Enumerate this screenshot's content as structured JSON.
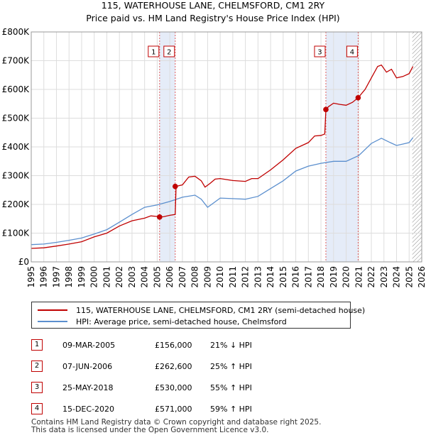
{
  "chart_data": {
    "type": "line",
    "title": "115, WATERHOUSE LANE, CHELMSFORD, CM1 2RY",
    "subtitle": "Price paid vs. HM Land Registry's House Price Index (HPI)",
    "xlabel": "",
    "ylabel": "",
    "xlim": [
      1995,
      2026
    ],
    "ylim": [
      0,
      800000
    ],
    "x_ticks": [
      "1995",
      "1996",
      "1997",
      "1998",
      "1999",
      "2000",
      "2001",
      "2002",
      "2003",
      "2004",
      "2005",
      "2006",
      "2007",
      "2008",
      "2009",
      "2010",
      "2011",
      "2012",
      "2013",
      "2014",
      "2015",
      "2016",
      "2017",
      "2018",
      "2019",
      "2020",
      "2021",
      "2022",
      "2023",
      "2024",
      "2025",
      "2026"
    ],
    "y_ticks": [
      {
        "value": 0,
        "label": "£0"
      },
      {
        "value": 100000,
        "label": "£100K"
      },
      {
        "value": 200000,
        "label": "£200K"
      },
      {
        "value": 300000,
        "label": "£300K"
      },
      {
        "value": 400000,
        "label": "£400K"
      },
      {
        "value": 500000,
        "label": "£500K"
      },
      {
        "value": 600000,
        "label": "£600K"
      },
      {
        "value": 700000,
        "label": "£700K"
      },
      {
        "value": 800000,
        "label": "£800K"
      }
    ],
    "grid": true,
    "series": [
      {
        "name": "115, WATERHOUSE LANE, CHELMSFORD, CM1 2RY (semi-detached house)",
        "color": "#c00000",
        "x": [
          1995.0,
          1996.0,
          1997.0,
          1998.0,
          1999.0,
          2000.0,
          2001.0,
          2002.0,
          2003.0,
          2004.0,
          2004.5,
          2005.0,
          2005.19,
          2005.5,
          2006.0,
          2006.43,
          2006.5,
          2007.0,
          2007.5,
          2008.0,
          2008.5,
          2008.8,
          2009.2,
          2009.6,
          2010.0,
          2011.0,
          2012.0,
          2012.5,
          2013.0,
          2014.0,
          2015.0,
          2016.0,
          2017.0,
          2017.5,
          2018.0,
          2018.3,
          2018.39,
          2018.6,
          2019.0,
          2019.5,
          2020.0,
          2020.5,
          2020.95,
          2021.5,
          2022.0,
          2022.5,
          2022.8,
          2023.2,
          2023.6,
          2024.0,
          2024.5,
          2025.0,
          2025.3
        ],
        "values": [
          47000,
          49000,
          55000,
          62000,
          70000,
          87000,
          100000,
          125000,
          143000,
          152000,
          160000,
          158000,
          156000,
          157000,
          162000,
          165000,
          262600,
          268000,
          295000,
          298000,
          282000,
          260000,
          273000,
          288000,
          290000,
          283000,
          280000,
          290000,
          290000,
          320000,
          355000,
          395000,
          415000,
          438000,
          440000,
          445000,
          530000,
          540000,
          552000,
          548000,
          545000,
          555000,
          571000,
          600000,
          640000,
          680000,
          685000,
          660000,
          670000,
          640000,
          645000,
          655000,
          680000
        ]
      },
      {
        "name": "HPI: Average price, semi-detached house, Chelmsford",
        "color": "#5b8fce",
        "x": [
          1995.0,
          1996.0,
          1997.0,
          1998.0,
          1999.0,
          2000.0,
          2001.0,
          2002.0,
          2003.0,
          2004.0,
          2005.0,
          2006.0,
          2007.0,
          2008.0,
          2008.5,
          2009.0,
          2009.5,
          2010.0,
          2011.0,
          2012.0,
          2013.0,
          2014.0,
          2015.0,
          2016.0,
          2017.0,
          2018.0,
          2019.0,
          2020.0,
          2021.0,
          2022.0,
          2022.8,
          2023.5,
          2024.0,
          2024.5,
          2025.0,
          2025.3
        ],
        "values": [
          60000,
          62000,
          68000,
          75000,
          83000,
          97000,
          112000,
          138000,
          165000,
          190000,
          198000,
          210000,
          225000,
          232000,
          218000,
          190000,
          206000,
          222000,
          220000,
          218000,
          228000,
          255000,
          282000,
          316000,
          333000,
          343000,
          350000,
          350000,
          370000,
          412000,
          430000,
          415000,
          405000,
          410000,
          415000,
          432000
        ]
      }
    ],
    "transactions": [
      {
        "label": "1",
        "x": 2005.19,
        "value": 156000
      },
      {
        "label": "2",
        "x": 2006.43,
        "value": 262600
      },
      {
        "label": "3",
        "x": 2018.39,
        "value": 530000
      },
      {
        "label": "4",
        "x": 2020.95,
        "value": 571000
      }
    ],
    "shaded_spans": [
      [
        2005.19,
        2006.43
      ],
      [
        2018.39,
        2020.95
      ]
    ],
    "hatched_from": 2025.25
  },
  "legend": {
    "items": [
      {
        "label": "115, WATERHOUSE LANE, CHELMSFORD, CM1 2RY (semi-detached house)",
        "color": "#c00000"
      },
      {
        "label": "HPI: Average price, semi-detached house, Chelmsford",
        "color": "#5b8fce"
      }
    ]
  },
  "table": {
    "rows": [
      {
        "num": "1",
        "date": "09-MAR-2005",
        "price": "£156,000",
        "hpi": "21% ↓ HPI"
      },
      {
        "num": "2",
        "date": "07-JUN-2006",
        "price": "£262,600",
        "hpi": "25% ↑ HPI"
      },
      {
        "num": "3",
        "date": "25-MAY-2018",
        "price": "£530,000",
        "hpi": "55% ↑ HPI"
      },
      {
        "num": "4",
        "date": "15-DEC-2020",
        "price": "£571,000",
        "hpi": "59% ↑ HPI"
      }
    ]
  },
  "footer": {
    "line1": "Contains HM Land Registry data © Crown copyright and database right 2025.",
    "line2": "This data is licensed under the Open Government Licence v3.0."
  }
}
